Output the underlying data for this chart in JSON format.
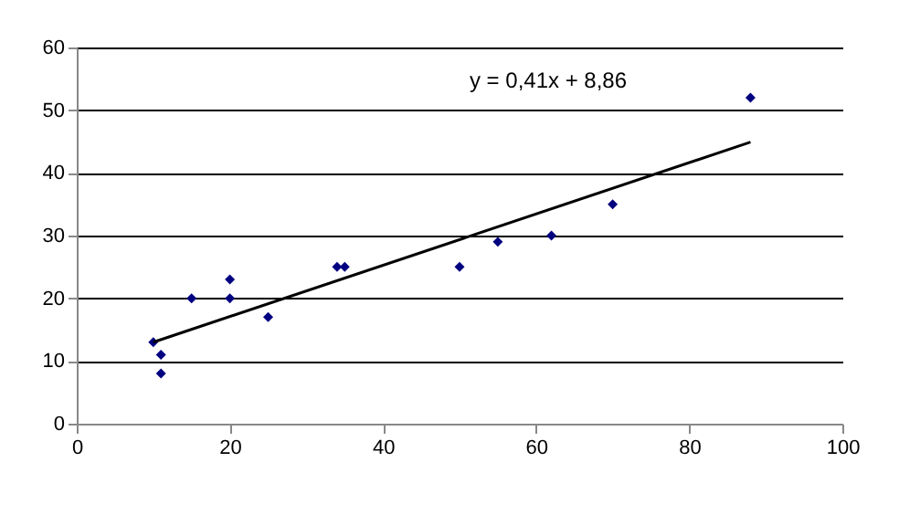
{
  "chart_data": {
    "type": "scatter",
    "x": [
      10,
      11,
      11,
      15,
      20,
      20,
      25,
      34,
      35,
      50,
      55,
      62,
      70,
      88
    ],
    "series": [
      {
        "color": "#000080",
        "marker": "diamond",
        "values": [
          13,
          11,
          8,
          20,
          23,
          20,
          17,
          25,
          25,
          25,
          29,
          30,
          35,
          52
        ]
      },
      {
        "type": "line",
        "marker": "none",
        "color": "#000000",
        "x": [
          10,
          88
        ],
        "values": [
          13.0,
          44.9
        ]
      }
    ],
    "xlim": [
      0,
      100
    ],
    "xticks": [
      0,
      20,
      40,
      60,
      80,
      100
    ],
    "ylim": [
      0,
      60
    ],
    "yticks": [
      0,
      10,
      20,
      30,
      40,
      50,
      60
    ],
    "grid": "y",
    "annotations": [
      "y = 0,41x + 8,86"
    ]
  }
}
